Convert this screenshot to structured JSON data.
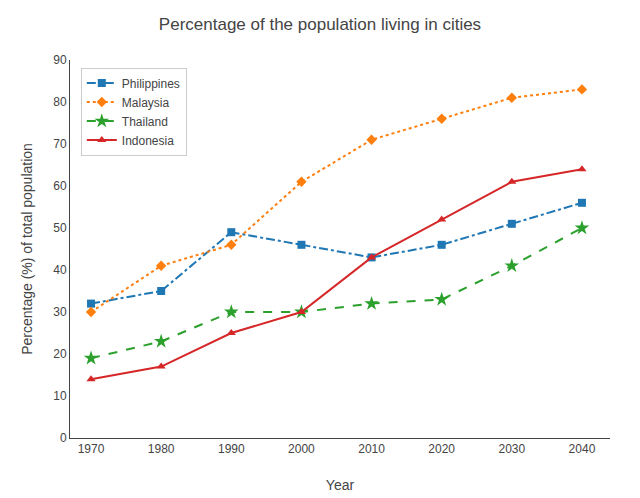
{
  "chart_data": {
    "type": "line",
    "title": "Percentage of the population living in cities",
    "xlabel": "Year",
    "ylabel": "Percentage (%) of total population",
    "x": [
      1970,
      1980,
      1990,
      2000,
      2010,
      2020,
      2030,
      2040
    ],
    "series": [
      {
        "name": "Philippines",
        "values": [
          32,
          35,
          49,
          46,
          43,
          46,
          51,
          56
        ],
        "marker": "square",
        "line_style": "dashdot"
      },
      {
        "name": "Malaysia",
        "values": [
          30,
          41,
          46,
          61,
          71,
          76,
          81,
          83
        ],
        "marker": "diamond",
        "line_style": "dotted"
      },
      {
        "name": "Thailand",
        "values": [
          19,
          23,
          30,
          30,
          32,
          33,
          41,
          50
        ],
        "marker": "star",
        "line_style": "dashed"
      },
      {
        "name": "Indonesia",
        "values": [
          14,
          17,
          25,
          30,
          43,
          52,
          61,
          64
        ],
        "marker": "triangle-up",
        "line_style": "solid"
      }
    ],
    "xlim": [
      1967,
      2044
    ],
    "xticks": [
      1970,
      1980,
      1990,
      2000,
      2010,
      2020,
      2030,
      2040
    ],
    "ylim": [
      0,
      90
    ],
    "yticks": [
      0,
      10,
      20,
      30,
      40,
      50,
      60,
      70,
      80,
      90
    ],
    "grid": false,
    "legend": "upper left"
  }
}
